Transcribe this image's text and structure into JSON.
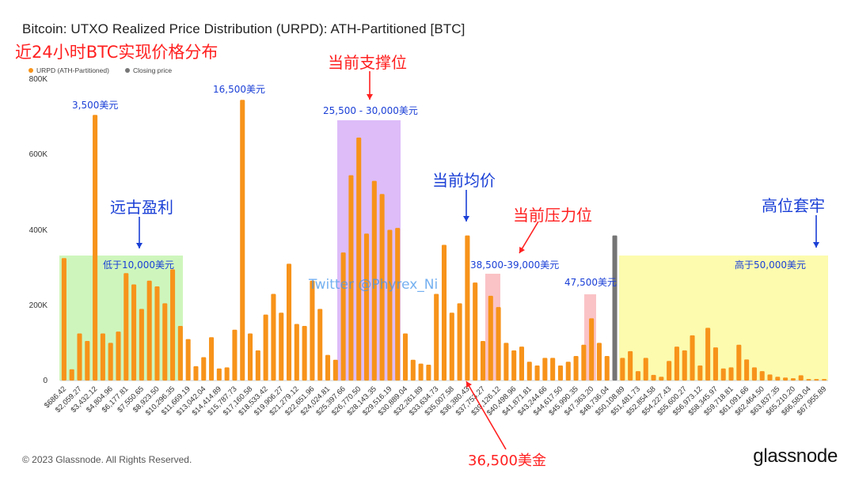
{
  "title": "Bitcoin: UTXO Realized Price Distribution (URPD): ATH-Partitioned [BTC]",
  "subtitle": "近24小时BTC实现价格分布",
  "legend": {
    "series1": "URPD (ATH-Partitioned)",
    "series2": "Closing price",
    "series1_color": "#f7931a",
    "series2_color": "#777777"
  },
  "footer": "© 2023 Glassnode. All Rights Reserved.",
  "brand": "glassnode",
  "watermark": "Twitter @Phyrex_Ni",
  "annotations": {
    "current_support": "当前支撑位",
    "current_avg": "当前均价",
    "current_pressure": "当前压力位",
    "ancient_profit": "远古盈利",
    "high_trapped": "高位套牢",
    "below_10000": "低于10,000美元",
    "above_50000": "高于50,000美元",
    "range_25500_30000": "25,500 - 30,000美元",
    "range_38500_39000": "38,500-39,000美元",
    "p_47500": "47,500美元",
    "p_3500": "3,500美元",
    "p_16500": "16,500美元",
    "p_36500": "36,500美金"
  },
  "colors": {
    "bar": "#f7931a",
    "closing": "#757575",
    "annotation_blue": "#1a3fd6",
    "annotation_red": "#ff2020"
  },
  "chart_data": {
    "type": "bar",
    "ylim": [
      0,
      800000
    ],
    "y_ticks": [
      "0",
      "200K",
      "400K",
      "600K",
      "800K"
    ],
    "x_tick_labels": [
      "$686.42",
      "$2,059.27",
      "$3,432.12",
      "$4,804.96",
      "$6,177.81",
      "$7,550.65",
      "$8,923.50",
      "$10,296.35",
      "$11,669.19",
      "$13,042.04",
      "$14,414.89",
      "$15,787.73",
      "$17,160.58",
      "$18,533.42",
      "$19,906.27",
      "$21,279.12",
      "$22,651.96",
      "$24,024.81",
      "$25,397.66",
      "$26,770.50",
      "$28,143.35",
      "$29,516.19",
      "$30,889.04",
      "$32,261.89",
      "$33,634.73",
      "$35,007.58",
      "$36,380.43",
      "$37,753.27",
      "$39,126.12",
      "$40,498.96",
      "$41,871.81",
      "$43,244.66",
      "$44,617.50",
      "$45,990.35",
      "$47,363.20",
      "$48,736.04",
      "$50,108.89",
      "$51,481.73",
      "$52,854.58",
      "$54,227.43",
      "$55,600.27",
      "$56,973.12",
      "$58,345.97",
      "$59,718.81",
      "$61,091.66",
      "$62,464.50",
      "$63,837.35",
      "$65,210.20",
      "$66,583.04",
      "$67,955.89"
    ],
    "closing_price_bin": 71,
    "values": [
      325000,
      30000,
      125000,
      105000,
      705000,
      125000,
      100000,
      130000,
      285000,
      255000,
      190000,
      265000,
      250000,
      205000,
      295000,
      145000,
      110000,
      38000,
      62000,
      115000,
      32000,
      35000,
      135000,
      745000,
      125000,
      80000,
      175000,
      230000,
      180000,
      310000,
      150000,
      145000,
      265000,
      190000,
      68000,
      55000,
      340000,
      545000,
      645000,
      390000,
      530000,
      495000,
      400000,
      405000,
      125000,
      55000,
      45000,
      42000,
      230000,
      360000,
      180000,
      205000,
      385000,
      260000,
      105000,
      225000,
      195000,
      100000,
      80000,
      90000,
      50000,
      40000,
      60000,
      60000,
      40000,
      50000,
      65000,
      95000,
      165000,
      100000,
      65000,
      60000,
      78000,
      25000,
      60000,
      15000,
      10000,
      52000,
      90000,
      80000,
      120000,
      40000,
      140000,
      88000,
      32000,
      35000,
      95000,
      56000,
      35000,
      25000,
      16000,
      10000,
      8000,
      6000,
      14000,
      4000,
      4000,
      4000
    ],
    "closing_value": 385000
  }
}
